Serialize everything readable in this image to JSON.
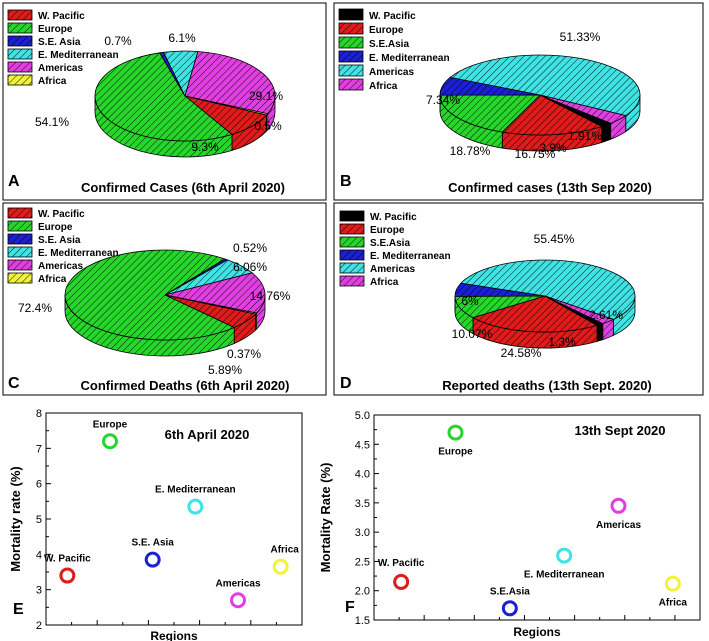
{
  "chart_data": [
    {
      "type": "pie",
      "panel": "A",
      "title": "Confirmed Cases (6th April 2020)",
      "legend": [
        "W. Pacific",
        "Europe",
        "S.E. Asia",
        "E. Mediterranean",
        "Americas",
        "Africa"
      ],
      "slices": [
        {
          "name": "W. Pacific",
          "value": 9.3,
          "label": "9.3%"
        },
        {
          "name": "Europe",
          "value": 54.1,
          "label": "54.1%"
        },
        {
          "name": "S.E. Asia",
          "value": 0.7,
          "label": "0.7%"
        },
        {
          "name": "E. Mediterranean",
          "value": 6.1,
          "label": "6.1%"
        },
        {
          "name": "Americas",
          "value": 29.1,
          "label": "29.1%"
        },
        {
          "name": "Africa",
          "value": 0.5,
          "label": "0.5%"
        }
      ]
    },
    {
      "type": "pie",
      "panel": "B",
      "title": "Confirmed cases (13th Sep 2020)",
      "legend": [
        "W. Pacific",
        "Europe",
        "S.E.Asia",
        "E. Mediterranean",
        "Americas",
        "Africa"
      ],
      "slices": [
        {
          "name": "W. Pacific",
          "value": 1.91,
          "label": "1.91%"
        },
        {
          "name": "Europe",
          "value": 16.75,
          "label": "16.75%"
        },
        {
          "name": "S.E.Asia",
          "value": 18.78,
          "label": "18.78%"
        },
        {
          "name": "E. Mediterranean",
          "value": 7.34,
          "label": "7.34%"
        },
        {
          "name": "Americas",
          "value": 51.33,
          "label": "51.33%"
        },
        {
          "name": "Africa",
          "value": 3.9,
          "label": "3.9%"
        }
      ]
    },
    {
      "type": "pie",
      "panel": "C",
      "title": "Confirmed Deaths (6th April 2020)",
      "legend": [
        "W. Pacific",
        "Europe",
        "S.E. Asia",
        "E. Mediterranean",
        "Americas",
        "Africa"
      ],
      "slices": [
        {
          "name": "W. Pacific",
          "value": 5.89,
          "label": "5.89%"
        },
        {
          "name": "Europe",
          "value": 72.4,
          "label": "72.4%"
        },
        {
          "name": "S.E. Asia",
          "value": 0.52,
          "label": "0.52%"
        },
        {
          "name": "E. Mediterranean",
          "value": 6.06,
          "label": "6.06%"
        },
        {
          "name": "Americas",
          "value": 14.76,
          "label": "14.76%"
        },
        {
          "name": "Africa",
          "value": 0.37,
          "label": "0.37%"
        }
      ]
    },
    {
      "type": "pie",
      "panel": "D",
      "title": "Reported deaths (13th Sept. 2020)",
      "legend": [
        "W. Pacific",
        "Europe",
        "S.E.Asia",
        "E. Mediterranean",
        "Americas",
        "Africa"
      ],
      "slices": [
        {
          "name": "W. Pacific",
          "value": 1.3,
          "label": "1.3%"
        },
        {
          "name": "Europe",
          "value": 24.58,
          "label": "24.58%"
        },
        {
          "name": "S.E.Asia",
          "value": 10.07,
          "label": "10.07%"
        },
        {
          "name": "E. Mediterranean",
          "value": 6,
          "label": "6%"
        },
        {
          "name": "Americas",
          "value": 55.45,
          "label": "55.45%"
        },
        {
          "name": "Africa",
          "value": 2.61,
          "label": "2.61%"
        }
      ]
    },
    {
      "type": "scatter",
      "panel": "E",
      "title": "6th April 2020",
      "xlabel": "Regions",
      "ylabel": "Mortality rate (%)",
      "ylim": [
        2,
        8
      ],
      "yticks": [
        "2",
        "3",
        "4",
        "5",
        "6",
        "7",
        "8"
      ],
      "points": [
        {
          "name": "W. Pacific",
          "x": 1,
          "y": 3.4
        },
        {
          "name": "Europe",
          "x": 2,
          "y": 7.2
        },
        {
          "name": "S.E. Asia",
          "x": 3,
          "y": 3.85
        },
        {
          "name": "E. Mediterranean",
          "x": 4,
          "y": 5.35
        },
        {
          "name": "Americas",
          "x": 5,
          "y": 2.7
        },
        {
          "name": "Africa",
          "x": 6,
          "y": 3.65
        }
      ]
    },
    {
      "type": "scatter",
      "panel": "F",
      "title": "13th Sept 2020",
      "xlabel": "Regions",
      "ylabel": "Mortality Rate (%)",
      "ylim": [
        1.5,
        5.0
      ],
      "yticks": [
        "1.5",
        "2.0",
        "2.5",
        "3.0",
        "3.5",
        "4.0",
        "4.5",
        "5.0"
      ],
      "points": [
        {
          "name": "W. Pacific",
          "x": 1,
          "y": 2.15
        },
        {
          "name": "Europe",
          "x": 2,
          "y": 4.7
        },
        {
          "name": "S.E.Asia",
          "x": 3,
          "y": 1.7
        },
        {
          "name": "E. Mediterranean",
          "x": 4,
          "y": 2.6
        },
        {
          "name": "Americas",
          "x": 5,
          "y": 3.45
        },
        {
          "name": "Africa",
          "x": 6,
          "y": 2.12
        }
      ]
    }
  ],
  "colors": {
    "W. Pacific": "#e01b1b",
    "Europe": "#27d62a",
    "S.E. Asia": "#1b1fd6",
    "E. Mediterranean": "#3fe3e3",
    "Americas": "#e23fe2",
    "Africa": "#f2f23a",
    "W. Pacific (B, D)": "#000000",
    "Europe (B, D)": "#e01b1b",
    "S.E.Asia (B, D)": "#27d62a",
    "E. Mediterranean (B, D)": "#1b1fd6",
    "Americas (B, D)": "#3fe3e3",
    "Africa (B, D)": "#e23fe2"
  }
}
